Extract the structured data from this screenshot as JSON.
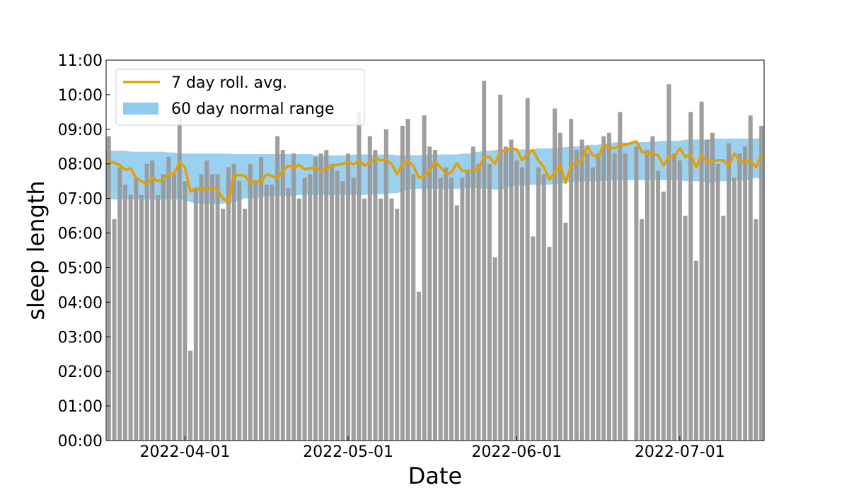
{
  "chart_data": {
    "type": "bar",
    "xlabel": "Date",
    "ylabel": "sleep length",
    "x_start_date": "2022-03-18",
    "x_ticks": [
      "2022-04-01",
      "2022-05-01",
      "2022-06-01",
      "2022-07-01"
    ],
    "y_ticks": [
      "00:00",
      "01:00",
      "02:00",
      "03:00",
      "04:00",
      "05:00",
      "06:00",
      "07:00",
      "08:00",
      "09:00",
      "10:00",
      "11:00"
    ],
    "ylim": [
      0,
      11
    ],
    "grid": false,
    "legend": {
      "placement": "top-left",
      "entries": [
        {
          "label": "7 day roll. avg.",
          "kind": "line",
          "color": "#e69f00"
        },
        {
          "label": "60 day normal range",
          "kind": "band",
          "color": "#8fcbee"
        }
      ]
    },
    "colors": {
      "bars": "#999999",
      "rolling_avg": "#e69f00",
      "normal_range": "#8fcbee"
    },
    "series": [
      {
        "name": "sleep length (hours)",
        "type": "bar",
        "values": [
          8.8,
          6.4,
          7.9,
          7.4,
          7.1,
          7.6,
          7.1,
          8.0,
          8.1,
          7.1,
          7.7,
          8.2,
          7.7,
          9.5,
          7.5,
          2.6,
          7.3,
          7.7,
          8.1,
          7.7,
          7.7,
          6.7,
          7.9,
          8.0,
          7.5,
          6.7,
          8.0,
          7.5,
          8.2,
          7.4,
          7.4,
          8.8,
          8.4,
          7.3,
          8.3,
          7.0,
          7.6,
          7.7,
          8.2,
          8.3,
          8.4,
          8.0,
          7.8,
          7.5,
          8.3,
          7.6,
          9.5,
          7.0,
          8.8,
          8.4,
          7.0,
          9.0,
          7.0,
          6.7,
          9.1,
          9.3,
          7.7,
          4.3,
          9.4,
          8.5,
          8.4,
          7.6,
          7.9,
          7.6,
          6.8,
          7.6,
          7.8,
          8.5,
          8.0,
          10.4,
          8.0,
          5.3,
          10.0,
          8.5,
          8.7,
          8.1,
          7.9,
          9.9,
          5.9,
          7.9,
          7.7,
          5.6,
          9.6,
          8.9,
          6.3,
          9.3,
          8.4,
          8.7,
          8.3,
          7.9,
          8.3,
          8.8,
          8.9,
          8.3,
          9.5,
          8.3,
          0,
          8.5,
          6.4,
          8.4,
          8.8,
          7.8,
          7.2,
          10.3,
          8.3,
          8.1,
          6.5,
          9.5,
          5.2,
          9.8,
          8.7,
          8.9,
          8.0,
          6.5,
          8.6,
          7.6,
          8.3,
          8.5,
          9.4,
          6.4,
          9.1
        ]
      },
      {
        "name": "7 day roll. avg.",
        "type": "line",
        "values": [
          8.07,
          8.03,
          7.97,
          7.83,
          7.87,
          7.6,
          7.5,
          7.4,
          7.6,
          7.5,
          7.55,
          7.7,
          7.72,
          8.05,
          7.9,
          7.2,
          7.3,
          7.25,
          7.3,
          7.3,
          7.25,
          7.0,
          6.9,
          7.65,
          7.68,
          7.65,
          7.45,
          7.5,
          7.48,
          7.7,
          7.65,
          7.58,
          7.8,
          7.95,
          7.88,
          7.97,
          7.85,
          7.87,
          7.9,
          7.8,
          7.85,
          7.95,
          7.97,
          8.0,
          8.05,
          7.98,
          8.1,
          7.95,
          8.05,
          8.15,
          8.1,
          8.12,
          8.0,
          7.7,
          8.0,
          8.08,
          7.95,
          7.6,
          7.65,
          7.8,
          8.07,
          7.9,
          7.7,
          7.75,
          8.02,
          7.8,
          7.8,
          7.82,
          7.85,
          8.2,
          8.2,
          8.0,
          8.35,
          8.4,
          8.45,
          8.42,
          8.1,
          8.3,
          8.4,
          8.1,
          7.9,
          7.55,
          7.75,
          7.95,
          7.45,
          7.95,
          8.02,
          8.1,
          8.5,
          8.25,
          8.2,
          8.55,
          8.48,
          8.45,
          8.55,
          8.55,
          8.6,
          8.65,
          8.35,
          8.3,
          8.3,
          8.25,
          7.95,
          8.2,
          8.2,
          8.45,
          8.2,
          8.28,
          7.9,
          8.25,
          8.05,
          8.08,
          8.1,
          8.1,
          7.95,
          8.3,
          8.1,
          8.05,
          8.1,
          7.9,
          8.25
        ]
      },
      {
        "name": "60 day normal range",
        "type": "band",
        "lower": [
          7.0,
          6.97,
          6.97,
          6.97,
          6.97,
          6.97,
          6.97,
          6.97,
          6.97,
          6.97,
          6.97,
          6.97,
          6.97,
          6.97,
          6.95,
          6.9,
          6.85,
          6.85,
          6.85,
          6.85,
          6.85,
          6.85,
          6.85,
          6.9,
          6.95,
          7.0,
          7.0,
          7.0,
          7.05,
          7.05,
          7.08,
          7.08,
          7.08,
          7.08,
          7.08,
          7.1,
          7.1,
          7.1,
          7.1,
          7.1,
          7.1,
          7.1,
          7.1,
          7.1,
          7.1,
          7.1,
          7.1,
          7.1,
          7.12,
          7.12,
          7.12,
          7.12,
          7.15,
          7.15,
          7.2,
          7.25,
          7.28,
          7.28,
          7.28,
          7.28,
          7.28,
          7.28,
          7.28,
          7.28,
          7.28,
          7.28,
          7.3,
          7.3,
          7.3,
          7.28,
          7.28,
          7.25,
          7.25,
          7.3,
          7.35,
          7.38,
          7.38,
          7.38,
          7.4,
          7.4,
          7.4,
          7.4,
          7.42,
          7.42,
          7.45,
          7.48,
          7.5,
          7.5,
          7.5,
          7.5,
          7.5,
          7.52,
          7.52,
          7.52,
          7.52,
          7.53,
          7.53,
          7.53,
          7.53,
          7.53,
          7.53,
          7.53,
          7.53,
          7.53,
          7.53,
          7.53,
          7.5,
          7.5,
          7.5,
          7.48,
          7.45,
          7.45,
          7.5,
          7.5,
          7.5,
          7.52,
          7.52,
          7.52,
          7.55,
          7.6,
          7.55
        ],
        "upper": [
          8.38,
          8.38,
          8.38,
          8.38,
          8.35,
          8.35,
          8.35,
          8.35,
          8.35,
          8.35,
          8.35,
          8.33,
          8.33,
          8.3,
          8.3,
          8.3,
          8.3,
          8.3,
          8.3,
          8.3,
          8.3,
          8.3,
          8.3,
          8.28,
          8.28,
          8.28,
          8.28,
          8.28,
          8.28,
          8.28,
          8.28,
          8.28,
          8.28,
          8.28,
          8.28,
          8.28,
          8.28,
          8.28,
          8.25,
          8.25,
          8.25,
          8.25,
          8.25,
          8.25,
          8.25,
          8.27,
          8.27,
          8.27,
          8.27,
          8.27,
          8.27,
          8.27,
          8.27,
          8.25,
          8.25,
          8.25,
          8.25,
          8.25,
          8.25,
          8.27,
          8.27,
          8.27,
          8.27,
          8.27,
          8.27,
          8.3,
          8.3,
          8.32,
          8.35,
          8.38,
          8.38,
          8.4,
          8.42,
          8.42,
          8.42,
          8.42,
          8.42,
          8.42,
          8.42,
          8.45,
          8.45,
          8.45,
          8.45,
          8.47,
          8.48,
          8.5,
          8.5,
          8.52,
          8.55,
          8.55,
          8.55,
          8.58,
          8.6,
          8.62,
          8.62,
          8.62,
          8.62,
          8.63,
          8.63,
          8.63,
          8.65,
          8.65,
          8.67,
          8.67,
          8.67,
          8.67,
          8.7,
          8.7,
          8.7,
          8.7,
          8.7,
          8.73,
          8.73,
          8.73,
          8.73,
          8.73,
          8.73,
          8.73,
          8.73,
          8.73,
          8.75
        ]
      }
    ]
  }
}
